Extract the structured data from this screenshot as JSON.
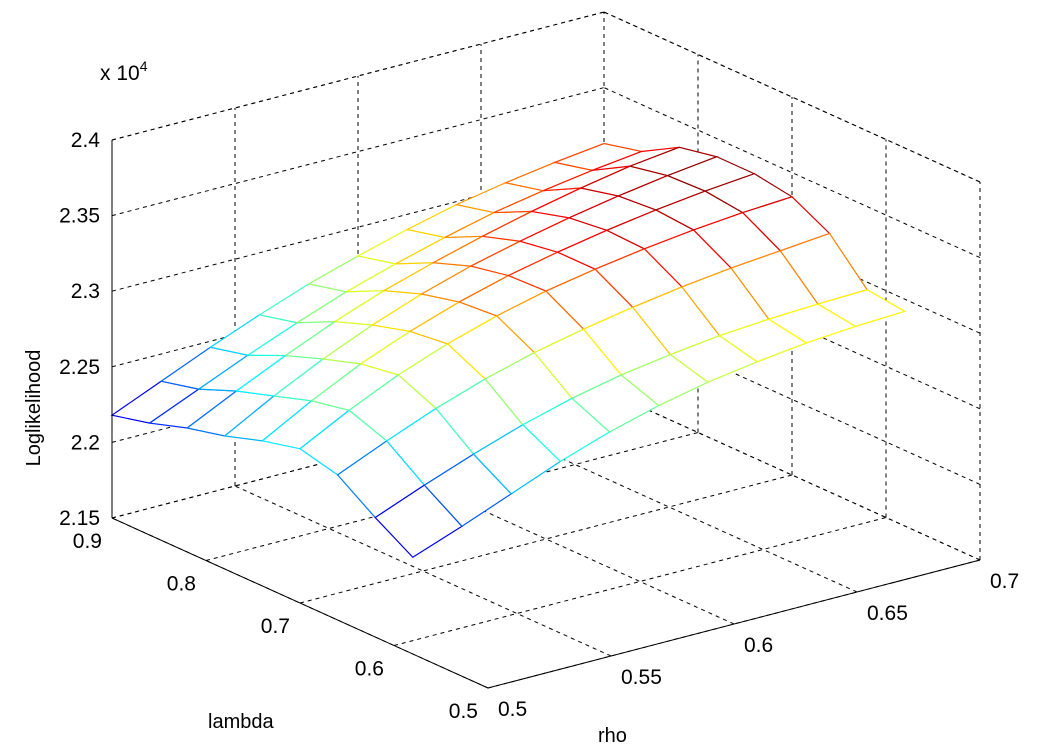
{
  "chart_data": {
    "type": "surface",
    "title": "",
    "xlabel": "rho",
    "ylabel": "lambda",
    "zlabel": "Loglikelihood",
    "zscale_label": "x 10",
    "zscale_exponent": "4",
    "xlim": [
      0.5,
      0.7
    ],
    "ylim": [
      0.5,
      0.9
    ],
    "zlim": [
      21500,
      24000
    ],
    "xticks": [
      "0.5",
      "0.55",
      "0.6",
      "0.65",
      "0.7"
    ],
    "yticks": [
      "0.5",
      "0.6",
      "0.7",
      "0.8",
      "0.9"
    ],
    "zticks": [
      "2.15",
      "2.2",
      "2.25",
      "2.3",
      "2.35",
      "2.4"
    ],
    "grid": true,
    "colormap": "jet",
    "rho": [
      0.5,
      0.52,
      0.54,
      0.56,
      0.58,
      0.6,
      0.62,
      0.64,
      0.66,
      0.68,
      0.7
    ],
    "lambda": [
      0.58,
      0.62,
      0.66,
      0.7,
      0.74,
      0.78,
      0.82,
      0.86,
      0.9
    ],
    "loglikelihood": [
      [
        22140,
        22260,
        22390,
        22520,
        22630,
        22720,
        22790,
        22840,
        22880,
        22905,
        22920
      ],
      [
        22290,
        22420,
        22540,
        22650,
        22740,
        22810,
        22860,
        22900,
        22925,
        22940,
        22950
      ],
      [
        22460,
        22600,
        22730,
        22840,
        22930,
        23000,
        23060,
        23110,
        23150,
        23180,
        23210
      ],
      [
        22520,
        22690,
        22840,
        22960,
        23060,
        23140,
        23200,
        23250,
        23290,
        23320,
        23340
      ],
      [
        22460,
        22640,
        22800,
        22930,
        23040,
        23130,
        23200,
        23260,
        23310,
        23350,
        23380
      ],
      [
        22380,
        22560,
        22720,
        22860,
        22980,
        23080,
        23160,
        23230,
        23290,
        23340,
        23380
      ],
      [
        22320,
        22480,
        22630,
        22770,
        22890,
        22990,
        23080,
        23160,
        23230,
        23290,
        23330
      ],
      [
        22240,
        22380,
        22520,
        22650,
        22770,
        22870,
        22960,
        23040,
        23100,
        23150,
        23190
      ],
      [
        22180,
        22320,
        22460,
        22590,
        22710,
        22810,
        22900,
        22980,
        23040,
        23090,
        23130
      ]
    ]
  }
}
